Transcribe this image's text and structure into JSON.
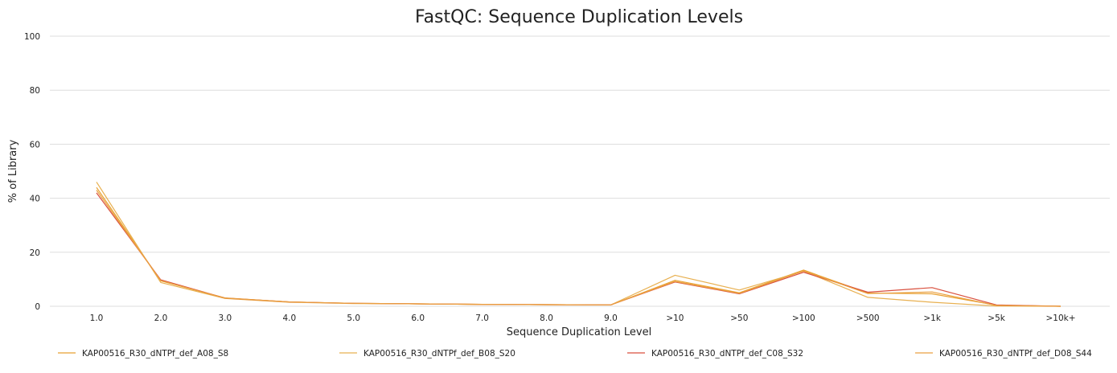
{
  "chart_data": {
    "type": "line",
    "title": "FastQC: Sequence Duplication Levels",
    "xlabel": "Sequence Duplication Level",
    "ylabel": "% of Library",
    "ylim": [
      0,
      100
    ],
    "yticks": [
      "0",
      "20",
      "40",
      "60",
      "80",
      "100"
    ],
    "categories": [
      "1.0",
      "2.0",
      "3.0",
      "4.0",
      "5.0",
      "6.0",
      "7.0",
      "8.0",
      "9.0",
      ">10",
      ">50",
      ">100",
      ">500",
      ">1k",
      ">5k",
      ">10k+"
    ],
    "grid": true,
    "legend_position": "bottom",
    "series": [
      {
        "name": "KAP00516_R30_dNTPf_def_A08_S8",
        "color": "#e8a030",
        "values": [
          44.0,
          9.4,
          3.1,
          1.6,
          1.1,
          0.9,
          0.7,
          0.6,
          0.5,
          9.6,
          5.0,
          13.4,
          4.9,
          4.6,
          0.4,
          0.0
        ]
      },
      {
        "name": "KAP00516_R30_dNTPf_def_B08_S20",
        "color": "#e8b050",
        "values": [
          46.0,
          8.8,
          2.9,
          1.5,
          1.0,
          0.9,
          0.7,
          0.6,
          0.5,
          11.5,
          6.0,
          13.0,
          3.3,
          1.5,
          0.1,
          0.0
        ]
      },
      {
        "name": "KAP00516_R30_dNTPf_def_C08_S32",
        "color": "#d94f3d",
        "values": [
          42.0,
          9.8,
          3.0,
          1.6,
          1.1,
          0.9,
          0.7,
          0.6,
          0.5,
          9.0,
          4.6,
          12.6,
          5.2,
          6.9,
          0.5,
          0.0
        ]
      },
      {
        "name": "KAP00516_R30_dNTPf_def_D08_S44",
        "color": "#eaa040",
        "values": [
          43.0,
          9.5,
          3.0,
          1.6,
          1.1,
          0.9,
          0.7,
          0.6,
          0.5,
          9.2,
          4.8,
          13.1,
          4.7,
          5.3,
          0.3,
          0.0
        ]
      }
    ]
  }
}
